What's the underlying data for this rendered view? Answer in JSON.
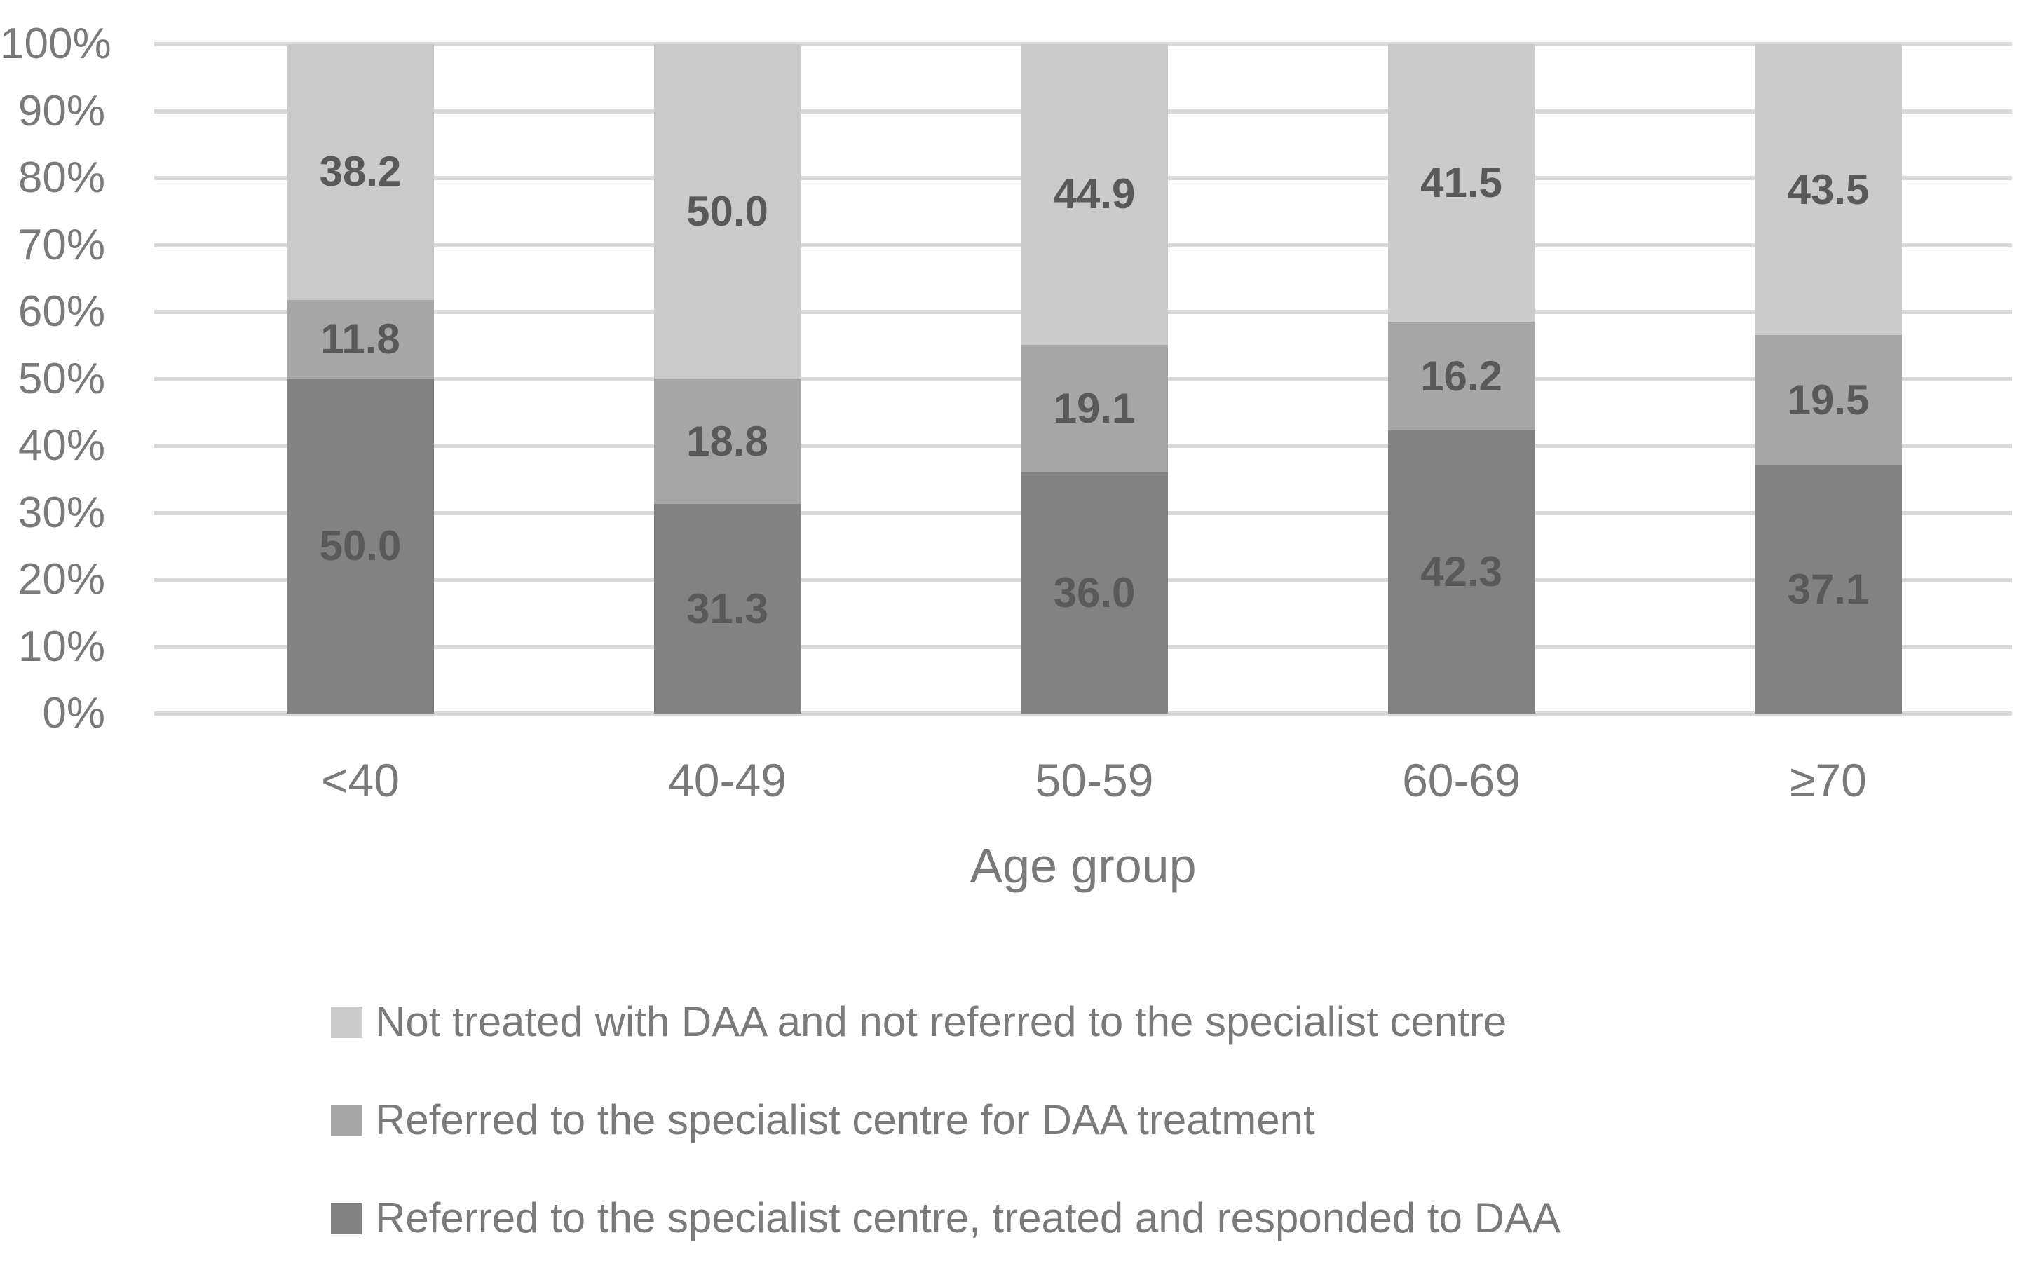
{
  "chart_data": {
    "type": "bar",
    "stacking": "percent",
    "title": "",
    "xlabel": "Age group",
    "ylabel": "",
    "categories": [
      "<40",
      "40-49",
      "50-59",
      "60-69",
      "≥70"
    ],
    "series": [
      {
        "name": "Referred to the specialist centre, treated and responded to DAA",
        "color": "#828282",
        "values": [
          50.0,
          31.3,
          36.0,
          42.3,
          37.1
        ]
      },
      {
        "name": "Referred to the specialist centre for DAA treatment",
        "color": "#a6a6a6",
        "values": [
          11.8,
          18.8,
          19.1,
          16.2,
          19.5
        ]
      },
      {
        "name": "Not treated with DAA and not referred to the specialist centre",
        "color": "#cbcbcb",
        "values": [
          38.2,
          50.0,
          44.9,
          41.5,
          43.5
        ]
      }
    ],
    "y_axis": {
      "min": 0,
      "max": 100,
      "step": 10,
      "tick_labels": [
        "0%",
        "10%",
        "20%",
        "30%",
        "40%",
        "50%",
        "60%",
        "70%",
        "80%",
        "90%",
        "100%"
      ]
    },
    "grid": true,
    "legend_position": "bottom",
    "legend_order_top_to_bottom": [
      2,
      1,
      0
    ],
    "colors": {
      "gridline": "#d9d9d9",
      "axis_text": "#7a7a7a",
      "data_label_text": "#595959",
      "background": "#ffffff"
    }
  }
}
